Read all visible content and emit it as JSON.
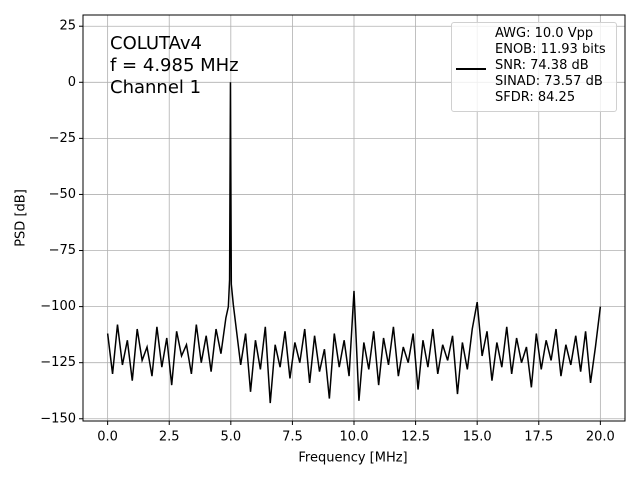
{
  "chart_data": {
    "type": "line",
    "annotation": [
      "COLUTAv4",
      "f = 4.985 MHz",
      "Channel 1"
    ],
    "x_label": "Frequency [MHz]",
    "y_label": "PSD [dB]",
    "x": [
      0,
      0.2,
      0.4,
      0.6,
      0.8,
      1,
      1.2,
      1.4,
      1.6,
      1.8,
      2,
      2.2,
      2.4,
      2.6,
      2.8,
      3,
      3.2,
      3.4,
      3.6,
      3.8,
      4,
      4.2,
      4.4,
      4.6,
      4.8,
      4.9,
      4.95,
      4.985,
      5.02,
      5.1,
      5.2,
      5.4,
      5.6,
      5.8,
      6,
      6.2,
      6.4,
      6.6,
      6.8,
      7,
      7.2,
      7.4,
      7.6,
      7.8,
      8,
      8.2,
      8.4,
      8.6,
      8.8,
      9,
      9.2,
      9.4,
      9.6,
      9.8,
      10,
      10.2,
      10.4,
      10.6,
      10.8,
      11,
      11.2,
      11.4,
      11.6,
      11.8,
      12,
      12.2,
      12.4,
      12.6,
      12.8,
      13,
      13.2,
      13.4,
      13.6,
      13.8,
      14,
      14.2,
      14.4,
      14.6,
      14.8,
      15,
      15.2,
      15.4,
      15.6,
      15.8,
      16,
      16.2,
      16.4,
      16.6,
      16.8,
      17,
      17.2,
      17.4,
      17.6,
      17.8,
      18,
      18.2,
      18.4,
      18.6,
      18.8,
      19,
      19.2,
      19.4,
      19.6,
      19.8,
      20
    ],
    "series": [
      {
        "name": "AWG: 10.0 Vpp\nENOB: 11.93 bits\nSNR: 74.38 dB\nSINAD: 73.57 dB\nSFDR: 84.25",
        "color": "#000000",
        "values": [
          -112,
          -130,
          -108,
          -126,
          -115,
          -133,
          -110,
          -124,
          -118,
          -131,
          -109,
          -127,
          -114,
          -135,
          -111,
          -122,
          -117,
          -130,
          -108,
          -125,
          -113,
          -129,
          -110,
          -121,
          -105,
          -100,
          -88,
          0,
          -90,
          -99,
          -108,
          -126,
          -112,
          -138,
          -115,
          -128,
          -109,
          -143,
          -117,
          -127,
          -111,
          -132,
          -116,
          -125,
          -110,
          -134,
          -113,
          -129,
          -119,
          -141,
          -112,
          -127,
          -115,
          -131,
          -93,
          -142,
          -116,
          -128,
          -111,
          -135,
          -114,
          -126,
          -109,
          -131,
          -118,
          -125,
          -112,
          -137,
          -115,
          -127,
          -110,
          -130,
          -117,
          -124,
          -113,
          -139,
          -116,
          -128,
          -110,
          -98,
          -122,
          -111,
          -133,
          -116,
          -127,
          -109,
          -130,
          -114,
          -125,
          -118,
          -136,
          -112,
          -128,
          -115,
          -124,
          -110,
          -131,
          -117,
          -126,
          -113,
          -129,
          -111,
          -134,
          -118,
          -100
        ]
      }
    ],
    "xlim": [
      -1,
      21
    ],
    "ylim": [
      -151,
      30
    ],
    "xticks": [
      {
        "value": 0,
        "label": "0.0"
      },
      {
        "value": 2.5,
        "label": "2.5"
      },
      {
        "value": 5,
        "label": "5.0"
      },
      {
        "value": 7.5,
        "label": "7.5"
      },
      {
        "value": 10,
        "label": "10.0"
      },
      {
        "value": 12.5,
        "label": "12.5"
      },
      {
        "value": 15,
        "label": "15.0"
      },
      {
        "value": 17.5,
        "label": "17.5"
      },
      {
        "value": 20,
        "label": "20.0"
      }
    ],
    "yticks": [
      {
        "value": -150,
        "label": "−150"
      },
      {
        "value": -125,
        "label": "−125"
      },
      {
        "value": -100,
        "label": "−100"
      },
      {
        "value": -75,
        "label": "−75"
      },
      {
        "value": -50,
        "label": "−50"
      },
      {
        "value": -25,
        "label": "−25"
      },
      0,
      25
    ],
    "grid": true,
    "legend": "upper right"
  }
}
